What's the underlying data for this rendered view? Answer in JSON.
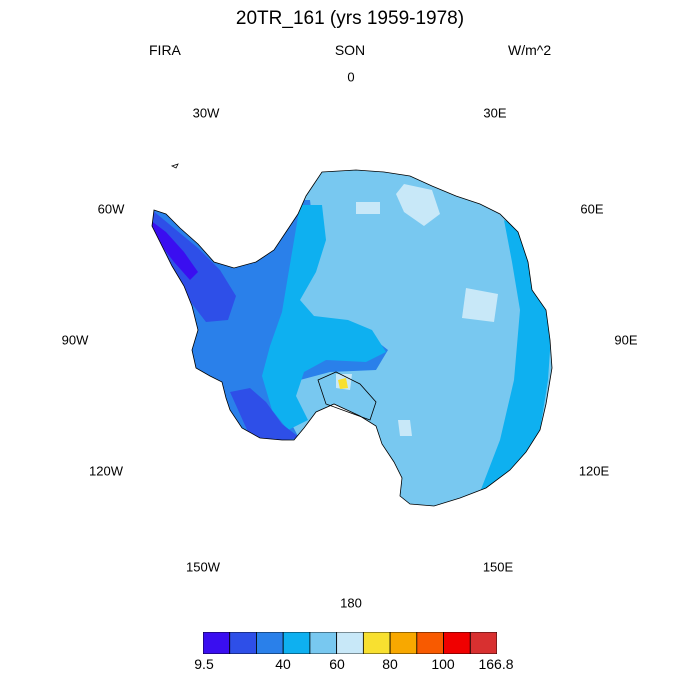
{
  "title": "20TR_161 (yrs 1959-1978)",
  "left_string": "FIRA",
  "center_string": "SON",
  "right_string": "W/m^2",
  "projection": "south-polar-stereographic",
  "longitude_labels": {
    "top": "0",
    "top_right": "30E",
    "upper_right": "60E",
    "right": "90E",
    "lower_right": "120E",
    "bottom_right": "150E",
    "bottom": "180",
    "bottom_left": "150W",
    "lower_left": "120W",
    "left": "90W",
    "upper_left": "60W",
    "top_left": "30W"
  },
  "colorbar": {
    "colors": [
      "#3a0ef0",
      "#2e4fe8",
      "#2a80ea",
      "#0eb0f0",
      "#78c8f0",
      "#c8e8f8",
      "#f8e030",
      "#f8a800",
      "#f85a00",
      "#f00000",
      "#d83030"
    ],
    "labels": [
      "9.5",
      "40",
      "60",
      "80",
      "100",
      "166.8"
    ]
  },
  "colors": {
    "coastline": "#000000",
    "highlight_yellow": "#f8e030"
  }
}
